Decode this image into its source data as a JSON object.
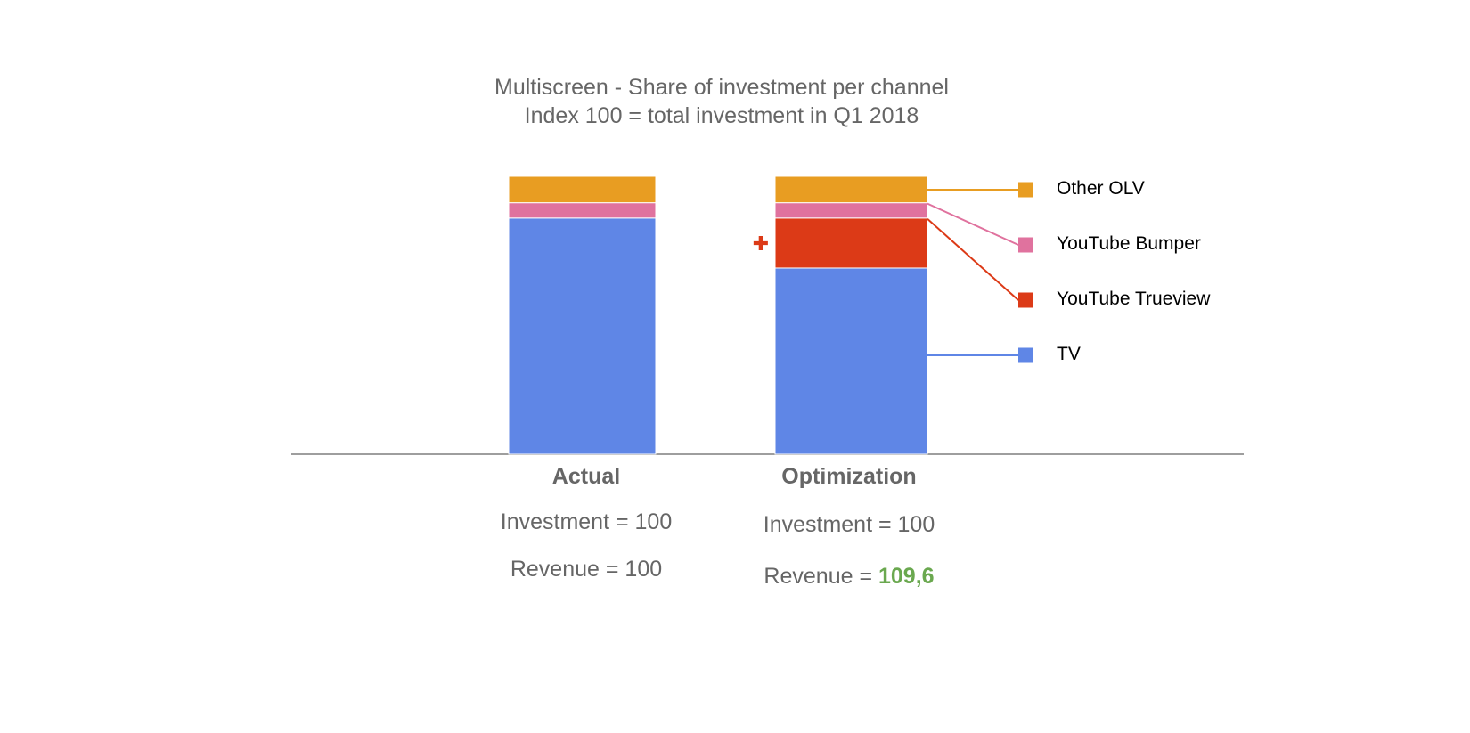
{
  "chart_data": {
    "type": "bar",
    "stacked": true,
    "title": "Multiscreen - Share of investment per channel",
    "subtitle": "Index 100 = total investment in Q1 2018",
    "categories": [
      "Actual",
      "Optimization"
    ],
    "ylim": [
      0,
      100
    ],
    "series": [
      {
        "name": "TV",
        "color": "#5f86e6",
        "values": [
          85,
          67
        ]
      },
      {
        "name": "YouTube Trueview",
        "color": "#dc3a17",
        "values": [
          0,
          18
        ]
      },
      {
        "name": "YouTube Bumper",
        "color": "#e0729e",
        "values": [
          5.5,
          5.5
        ]
      },
      {
        "name": "Other OLV",
        "color": "#e89d22",
        "values": [
          9.5,
          9.5
        ]
      }
    ],
    "legend_order": [
      "Other OLV",
      "YouTube Bumper",
      "YouTube Trueview",
      "TV"
    ],
    "legend_position": "right",
    "grid": false,
    "annotations": {
      "plus_marker": "✚",
      "plus_color": "#dc3a17"
    },
    "summary": [
      {
        "investment": "Investment = 100",
        "revenue_prefix": "Revenue = ",
        "revenue_value": "100"
      },
      {
        "investment": "Investment = 100",
        "revenue_prefix": "Revenue = ",
        "revenue_value": "109,6",
        "revenue_highlight": "#6aa84f"
      }
    ]
  }
}
